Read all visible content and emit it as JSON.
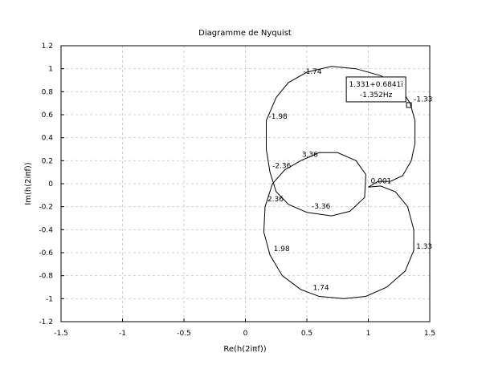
{
  "chart_data": {
    "type": "line",
    "title": "Diagramme de Nyquist",
    "xlabel": "Re(h(2iπf))",
    "ylabel": "Im(h(2iπf))",
    "color": "#000000",
    "grid": true,
    "xlim": [
      -1.5,
      1.5
    ],
    "ylim": [
      -1.2,
      1.2
    ],
    "xticks": [
      -1.5,
      -1,
      -0.5,
      0,
      0.5,
      1,
      1.5
    ],
    "yticks": [
      -1.2,
      -1,
      -0.8,
      -0.6,
      -0.4,
      -0.2,
      0,
      0.2,
      0.4,
      0.6,
      0.8,
      1,
      1.2
    ],
    "x": [
      1.0,
      1.1,
      1.22,
      1.32,
      1.37,
      1.37,
      1.3,
      1.15,
      0.98,
      0.8,
      0.6,
      0.45,
      0.3,
      0.2,
      0.15,
      0.16,
      0.22,
      0.32,
      0.45,
      0.6,
      0.75,
      0.9,
      0.98,
      0.97,
      0.85,
      0.7,
      0.5,
      0.35,
      0.25,
      0.2,
      0.17,
      0.17,
      0.25,
      0.35,
      0.5,
      0.7,
      0.9,
      1.1,
      1.25,
      1.34,
      1.38,
      1.38,
      1.35,
      1.28,
      1.18,
      1.08,
      1.0
    ],
    "values": [
      -0.03,
      -0.02,
      -0.07,
      -0.2,
      -0.4,
      -0.58,
      -0.76,
      -0.9,
      -0.98,
      -1.0,
      -0.98,
      -0.92,
      -0.8,
      -0.62,
      -0.42,
      -0.2,
      0.0,
      0.12,
      0.2,
      0.27,
      0.27,
      0.2,
      0.08,
      -0.12,
      -0.24,
      -0.28,
      -0.25,
      -0.18,
      -0.07,
      0.1,
      0.3,
      0.55,
      0.75,
      0.88,
      0.97,
      1.02,
      1.0,
      0.94,
      0.85,
      0.7,
      0.55,
      0.35,
      0.2,
      0.07,
      0.02,
      0.02,
      -0.03
    ],
    "annotations": [
      {
        "text": "-1.33",
        "x": 1.35,
        "y": 0.68
      },
      {
        "text": "-1.74",
        "x": 0.45,
        "y": 0.92
      },
      {
        "text": "-1.98",
        "x": 0.17,
        "y": 0.53
      },
      {
        "text": "-2.36",
        "x": 0.2,
        "y": 0.1
      },
      {
        "text": "3.36",
        "x": 0.44,
        "y": 0.2
      },
      {
        "text": "0.001",
        "x": 1.0,
        "y": -0.03
      },
      {
        "text": "2.36",
        "x": 0.16,
        "y": -0.19
      },
      {
        "text": "-3.36",
        "x": 0.52,
        "y": -0.25
      },
      {
        "text": "1.98",
        "x": 0.21,
        "y": -0.62
      },
      {
        "text": "1.33",
        "x": 1.37,
        "y": -0.6
      },
      {
        "text": "1.74",
        "x": 0.53,
        "y": -0.96
      }
    ],
    "datatip": {
      "lines": [
        "1.331+0.6841i",
        "-1.352Hz"
      ],
      "x": 1.331,
      "y": 0.6841
    }
  }
}
